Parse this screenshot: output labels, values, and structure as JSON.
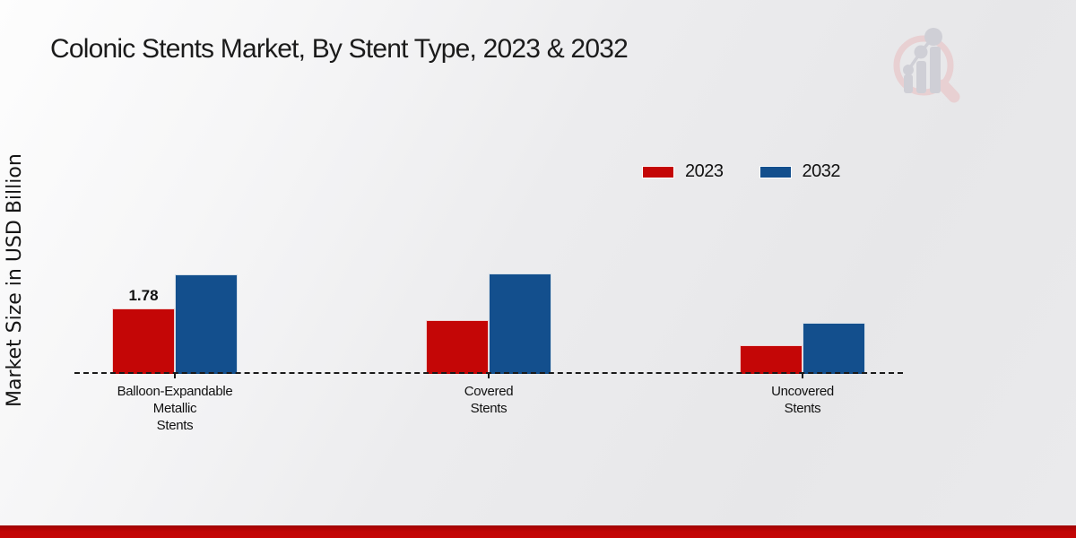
{
  "title": "Colonic Stents Market, By Stent Type, 2023 & 2032",
  "y_axis_label": "Market Size in USD Billion",
  "legend": {
    "items": [
      {
        "label": "2023",
        "color": "#c40606"
      },
      {
        "label": "2032",
        "color": "#134f8d"
      }
    ]
  },
  "colors": {
    "bar_2023": "#c40606",
    "bar_2032": "#134f8d",
    "footer": "#c20505",
    "axis": "#1a1a1a"
  },
  "logo": {
    "name": "market-research-future-watermark"
  },
  "chart_data": {
    "type": "bar",
    "title": "Colonic Stents Market, By Stent Type, 2023 & 2032",
    "xlabel": "",
    "ylabel": "Market Size in USD Billion",
    "categories": [
      "Balloon-Expandable\nMetallic\nStents",
      "Covered\nStents",
      "Uncovered\nStents"
    ],
    "series": [
      {
        "name": "2023",
        "color": "#c40606",
        "values": [
          1.78,
          1.47,
          0.78
        ]
      },
      {
        "name": "2032",
        "color": "#134f8d",
        "values": [
          2.7,
          2.72,
          1.4
        ]
      }
    ],
    "value_labels": [
      {
        "category_index": 0,
        "series_index": 0,
        "text": "1.78"
      }
    ],
    "ylim": [
      0,
      3.2
    ],
    "grid": false,
    "baseline_style": "dashed",
    "legend_position": "top-right"
  }
}
